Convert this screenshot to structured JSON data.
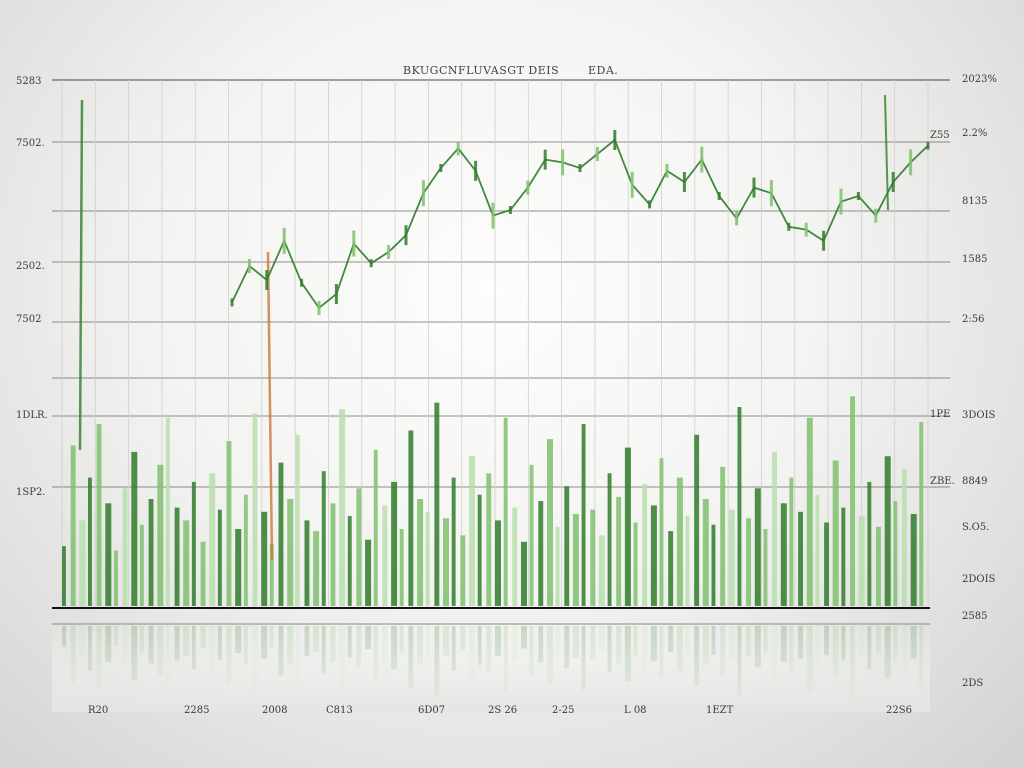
{
  "chart_data": {
    "type": "bar",
    "title": "BKUGCNFLUVASGT DEIS",
    "subtitle": "EDA.",
    "colors": {
      "bar_primary": "#2f7d2a",
      "bar_light": "#7fc16f",
      "bar_pale": "#b9dfae",
      "highlight": "#c9783a",
      "grid": "#3c3c3c",
      "axis": "#111111"
    },
    "left_ticks": [
      "5283",
      "7502.",
      "2502.",
      "7502",
      "1DLR.",
      "1SP2."
    ],
    "right_ticks": [
      "2023%",
      "2.2%",
      "8135",
      "1585",
      "2:56",
      "3DOIS",
      "8849",
      "S.O5.",
      "2DOIS",
      "2585",
      "2DS"
    ],
    "right_inner_ticks": [
      "Z55",
      "1PE",
      "ZBE."
    ],
    "x_ticks": [
      "R20",
      "2285",
      "2008",
      "C813",
      "6D07",
      "2S 26",
      "2-25",
      "L 08",
      "1EZT",
      "22S6"
    ],
    "x_range": [
      0,
      1
    ],
    "y_range": [
      0,
      1
    ],
    "grid": true,
    "legend": "none",
    "line_series": {
      "name": "",
      "values": [
        0.42,
        0.55,
        0.5,
        0.64,
        0.49,
        0.4,
        0.45,
        0.63,
        0.56,
        0.6,
        0.66,
        0.81,
        0.9,
        0.97,
        0.89,
        0.73,
        0.75,
        0.83,
        0.93,
        0.92,
        0.9,
        0.95,
        1.0,
        0.84,
        0.77,
        0.89,
        0.85,
        0.93,
        0.8,
        0.72,
        0.83,
        0.81,
        0.69,
        0.68,
        0.64,
        0.78,
        0.8,
        0.73,
        0.85,
        0.92,
        0.98
      ]
    },
    "bar_series": {
      "name": "",
      "values": [
        0.28,
        0.75,
        0.4,
        0.6,
        0.85,
        0.48,
        0.26,
        0.55,
        0.72,
        0.38,
        0.5,
        0.66,
        0.88,
        0.46,
        0.4,
        0.58,
        0.3,
        0.62,
        0.45,
        0.77,
        0.36,
        0.52,
        0.9,
        0.44,
        0.29,
        0.67,
        0.5,
        0.8,
        0.4,
        0.35,
        0.63,
        0.48,
        0.92,
        0.42,
        0.55,
        0.31,
        0.73,
        0.47,
        0.58,
        0.36,
        0.82,
        0.5,
        0.44,
        0.95,
        0.41,
        0.6,
        0.33,
        0.7,
        0.52,
        0.62,
        0.4,
        0.88,
        0.46,
        0.3,
        0.66,
        0.49,
        0.78,
        0.37,
        0.56,
        0.43,
        0.85,
        0.45,
        0.33,
        0.62,
        0.51,
        0.74,
        0.39,
        0.57,
        0.47,
        0.69,
        0.35,
        0.6,
        0.42,
        0.8,
        0.5,
        0.38,
        0.65,
        0.45,
        0.93,
        0.41,
        0.55,
        0.36,
        0.72,
        0.48,
        0.6,
        0.44,
        0.88,
        0.52,
        0.39,
        0.68,
        0.46,
        0.98,
        0.42,
        0.58,
        0.37,
        0.7,
        0.49,
        0.64,
        0.43,
        0.86
      ]
    }
  }
}
